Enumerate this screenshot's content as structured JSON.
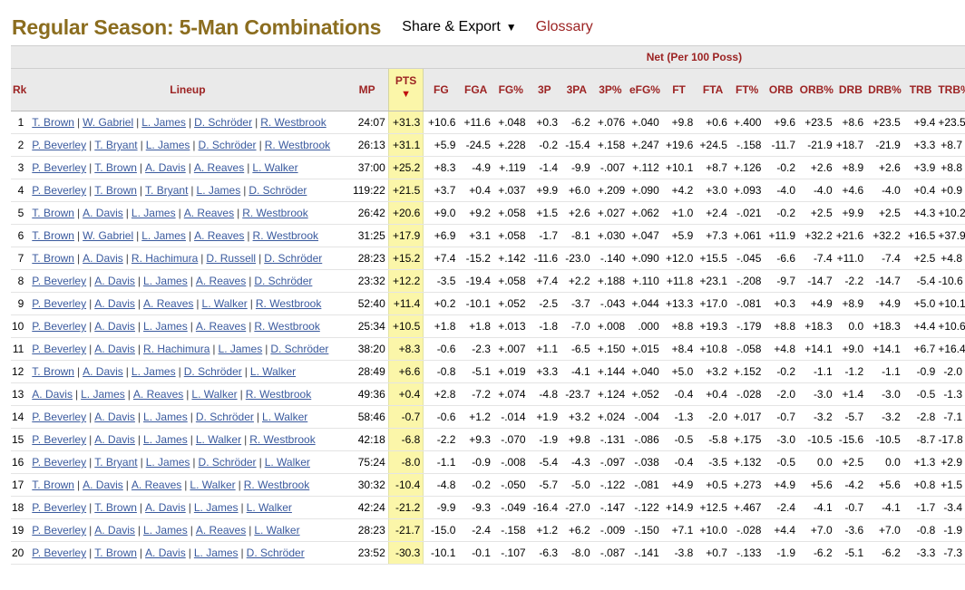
{
  "page": {
    "title": "Regular Season: 5-Man Combinations",
    "share_label": "Share & Export",
    "share_caret": "▼",
    "glossary_label": "Glossary"
  },
  "table": {
    "group_header": "Net (Per 100 Poss)",
    "sort_indicator": "▼",
    "sorted_column": "PTS",
    "columns": [
      "Rk",
      "Lineup",
      "MP",
      "PTS",
      "FG",
      "FGA",
      "FG%",
      "3P",
      "3PA",
      "3P%",
      "eFG%",
      "FT",
      "FTA",
      "FT%",
      "ORB",
      "ORB%",
      "DRB",
      "DRB%",
      "TRB",
      "TRB%"
    ],
    "rows": [
      {
        "rk": "1",
        "players": [
          "T. Brown",
          "W. Gabriel",
          "L. James",
          "D. Schröder",
          "R. Westbrook"
        ],
        "stats": [
          "24:07",
          "+31.3",
          "+10.6",
          "+11.6",
          "+.048",
          "+0.3",
          "-6.2",
          "+.076",
          "+.040",
          "+9.8",
          "+0.6",
          "+.400",
          "+9.6",
          "+23.5",
          "+8.6",
          "+23.5",
          "+9.4",
          "+23.5"
        ]
      },
      {
        "rk": "2",
        "players": [
          "P. Beverley",
          "T. Bryant",
          "L. James",
          "D. Schröder",
          "R. Westbrook"
        ],
        "stats": [
          "26:13",
          "+31.1",
          "+5.9",
          "-24.5",
          "+.228",
          "-0.2",
          "-15.4",
          "+.158",
          "+.247",
          "+19.6",
          "+24.5",
          "-.158",
          "-11.7",
          "-21.9",
          "+18.7",
          "-21.9",
          "+3.3",
          "+8.7"
        ]
      },
      {
        "rk": "3",
        "players": [
          "P. Beverley",
          "T. Brown",
          "A. Davis",
          "A. Reaves",
          "L. Walker"
        ],
        "stats": [
          "37:00",
          "+25.2",
          "+8.3",
          "-4.9",
          "+.119",
          "-1.4",
          "-9.9",
          "-.007",
          "+.112",
          "+10.1",
          "+8.7",
          "+.126",
          "-0.2",
          "+2.6",
          "+8.9",
          "+2.6",
          "+3.9",
          "+8.8"
        ]
      },
      {
        "rk": "4",
        "players": [
          "P. Beverley",
          "T. Brown",
          "T. Bryant",
          "L. James",
          "D. Schröder"
        ],
        "stats": [
          "119:22",
          "+21.5",
          "+3.7",
          "+0.4",
          "+.037",
          "+9.9",
          "+6.0",
          "+.209",
          "+.090",
          "+4.2",
          "+3.0",
          "+.093",
          "-4.0",
          "-4.0",
          "+4.6",
          "-4.0",
          "+0.4",
          "+0.9"
        ]
      },
      {
        "rk": "5",
        "players": [
          "T. Brown",
          "A. Davis",
          "L. James",
          "A. Reaves",
          "R. Westbrook"
        ],
        "stats": [
          "26:42",
          "+20.6",
          "+9.0",
          "+9.2",
          "+.058",
          "+1.5",
          "+2.6",
          "+.027",
          "+.062",
          "+1.0",
          "+2.4",
          "-.021",
          "-0.2",
          "+2.5",
          "+9.9",
          "+2.5",
          "+4.3",
          "+10.2"
        ]
      },
      {
        "rk": "6",
        "players": [
          "T. Brown",
          "W. Gabriel",
          "L. James",
          "A. Reaves",
          "R. Westbrook"
        ],
        "stats": [
          "31:25",
          "+17.9",
          "+6.9",
          "+3.1",
          "+.058",
          "-1.7",
          "-8.1",
          "+.030",
          "+.047",
          "+5.9",
          "+7.3",
          "+.061",
          "+11.9",
          "+32.2",
          "+21.6",
          "+32.2",
          "+16.5",
          "+37.9"
        ]
      },
      {
        "rk": "7",
        "players": [
          "T. Brown",
          "A. Davis",
          "R. Hachimura",
          "D. Russell",
          "D. Schröder"
        ],
        "stats": [
          "28:23",
          "+15.2",
          "+7.4",
          "-15.2",
          "+.142",
          "-11.6",
          "-23.0",
          "-.140",
          "+.090",
          "+12.0",
          "+15.5",
          "-.045",
          "-6.6",
          "-7.4",
          "+11.0",
          "-7.4",
          "+2.5",
          "+4.8"
        ]
      },
      {
        "rk": "8",
        "players": [
          "P. Beverley",
          "A. Davis",
          "L. James",
          "A. Reaves",
          "D. Schröder"
        ],
        "stats": [
          "23:32",
          "+12.2",
          "-3.5",
          "-19.4",
          "+.058",
          "+7.4",
          "+2.2",
          "+.188",
          "+.110",
          "+11.8",
          "+23.1",
          "-.208",
          "-9.7",
          "-14.7",
          "-2.2",
          "-14.7",
          "-5.4",
          "-10.6"
        ]
      },
      {
        "rk": "9",
        "players": [
          "P. Beverley",
          "A. Davis",
          "A. Reaves",
          "L. Walker",
          "R. Westbrook"
        ],
        "stats": [
          "52:40",
          "+11.4",
          "+0.2",
          "-10.1",
          "+.052",
          "-2.5",
          "-3.7",
          "-.043",
          "+.044",
          "+13.3",
          "+17.0",
          "-.081",
          "+0.3",
          "+4.9",
          "+8.9",
          "+4.9",
          "+5.0",
          "+10.1"
        ]
      },
      {
        "rk": "10",
        "players": [
          "P. Beverley",
          "A. Davis",
          "L. James",
          "A. Reaves",
          "R. Westbrook"
        ],
        "stats": [
          "25:34",
          "+10.5",
          "+1.8",
          "+1.8",
          "+.013",
          "-1.8",
          "-7.0",
          "+.008",
          ".000",
          "+8.8",
          "+19.3",
          "-.179",
          "+8.8",
          "+18.3",
          "0.0",
          "+18.3",
          "+4.4",
          "+10.6"
        ]
      },
      {
        "rk": "11",
        "players": [
          "P. Beverley",
          "A. Davis",
          "R. Hachimura",
          "L. James",
          "D. Schröder"
        ],
        "stats": [
          "38:20",
          "+8.3",
          "-0.6",
          "-2.3",
          "+.007",
          "+1.1",
          "-6.5",
          "+.150",
          "+.015",
          "+8.4",
          "+10.8",
          "-.058",
          "+4.8",
          "+14.1",
          "+9.0",
          "+14.1",
          "+6.7",
          "+16.4"
        ]
      },
      {
        "rk": "12",
        "players": [
          "T. Brown",
          "A. Davis",
          "L. James",
          "D. Schröder",
          "L. Walker"
        ],
        "stats": [
          "28:49",
          "+6.6",
          "-0.8",
          "-5.1",
          "+.019",
          "+3.3",
          "-4.1",
          "+.144",
          "+.040",
          "+5.0",
          "+3.2",
          "+.152",
          "-0.2",
          "-1.1",
          "-1.2",
          "-1.1",
          "-0.9",
          "-2.0"
        ]
      },
      {
        "rk": "13",
        "players": [
          "A. Davis",
          "L. James",
          "A. Reaves",
          "L. Walker",
          "R. Westbrook"
        ],
        "stats": [
          "49:36",
          "+0.4",
          "+2.8",
          "-7.2",
          "+.074",
          "-4.8",
          "-23.7",
          "+.124",
          "+.052",
          "-0.4",
          "+0.4",
          "-.028",
          "-2.0",
          "-3.0",
          "+1.4",
          "-3.0",
          "-0.5",
          "-1.3"
        ]
      },
      {
        "rk": "14",
        "players": [
          "P. Beverley",
          "A. Davis",
          "L. James",
          "D. Schröder",
          "L. Walker"
        ],
        "stats": [
          "58:46",
          "-0.7",
          "-0.6",
          "+1.2",
          "-.014",
          "+1.9",
          "+3.2",
          "+.024",
          "-.004",
          "-1.3",
          "-2.0",
          "+.017",
          "-0.7",
          "-3.2",
          "-5.7",
          "-3.2",
          "-2.8",
          "-7.1"
        ]
      },
      {
        "rk": "15",
        "players": [
          "P. Beverley",
          "A. Davis",
          "L. James",
          "L. Walker",
          "R. Westbrook"
        ],
        "stats": [
          "42:18",
          "-6.8",
          "-2.2",
          "+9.3",
          "-.070",
          "-1.9",
          "+9.8",
          "-.131",
          "-.086",
          "-0.5",
          "-5.8",
          "+.175",
          "-3.0",
          "-10.5",
          "-15.6",
          "-10.5",
          "-8.7",
          "-17.8"
        ]
      },
      {
        "rk": "16",
        "players": [
          "P. Beverley",
          "T. Bryant",
          "L. James",
          "D. Schröder",
          "L. Walker"
        ],
        "stats": [
          "75:24",
          "-8.0",
          "-1.1",
          "-0.9",
          "-.008",
          "-5.4",
          "-4.3",
          "-.097",
          "-.038",
          "-0.4",
          "-3.5",
          "+.132",
          "-0.5",
          "0.0",
          "+2.5",
          "0.0",
          "+1.3",
          "+2.9"
        ]
      },
      {
        "rk": "17",
        "players": [
          "T. Brown",
          "A. Davis",
          "A. Reaves",
          "L. Walker",
          "R. Westbrook"
        ],
        "stats": [
          "30:32",
          "-10.4",
          "-4.8",
          "-0.2",
          "-.050",
          "-5.7",
          "-5.0",
          "-.122",
          "-.081",
          "+4.9",
          "+0.5",
          "+.273",
          "+4.9",
          "+5.6",
          "-4.2",
          "+5.6",
          "+0.8",
          "+1.5"
        ]
      },
      {
        "rk": "18",
        "players": [
          "P. Beverley",
          "T. Brown",
          "A. Davis",
          "L. James",
          "L. Walker"
        ],
        "stats": [
          "42:24",
          "-21.2",
          "-9.9",
          "-9.3",
          "-.049",
          "-16.4",
          "-27.0",
          "-.147",
          "-.122",
          "+14.9",
          "+12.5",
          "+.467",
          "-2.4",
          "-4.1",
          "-0.7",
          "-4.1",
          "-1.7",
          "-3.4"
        ]
      },
      {
        "rk": "19",
        "players": [
          "P. Beverley",
          "A. Davis",
          "L. James",
          "A. Reaves",
          "L. Walker"
        ],
        "stats": [
          "28:23",
          "-21.7",
          "-15.0",
          "-2.4",
          "-.158",
          "+1.2",
          "+6.2",
          "-.009",
          "-.150",
          "+7.1",
          "+10.0",
          "-.028",
          "+4.4",
          "+7.0",
          "-3.6",
          "+7.0",
          "-0.8",
          "-1.9"
        ]
      },
      {
        "rk": "20",
        "players": [
          "P. Beverley",
          "T. Brown",
          "A. Davis",
          "L. James",
          "D. Schröder"
        ],
        "stats": [
          "23:52",
          "-30.3",
          "-10.1",
          "-0.1",
          "-.107",
          "-6.3",
          "-8.0",
          "-.087",
          "-.141",
          "-3.8",
          "+0.7",
          "-.133",
          "-1.9",
          "-6.2",
          "-5.1",
          "-6.2",
          "-3.3",
          "-7.3"
        ]
      }
    ]
  }
}
